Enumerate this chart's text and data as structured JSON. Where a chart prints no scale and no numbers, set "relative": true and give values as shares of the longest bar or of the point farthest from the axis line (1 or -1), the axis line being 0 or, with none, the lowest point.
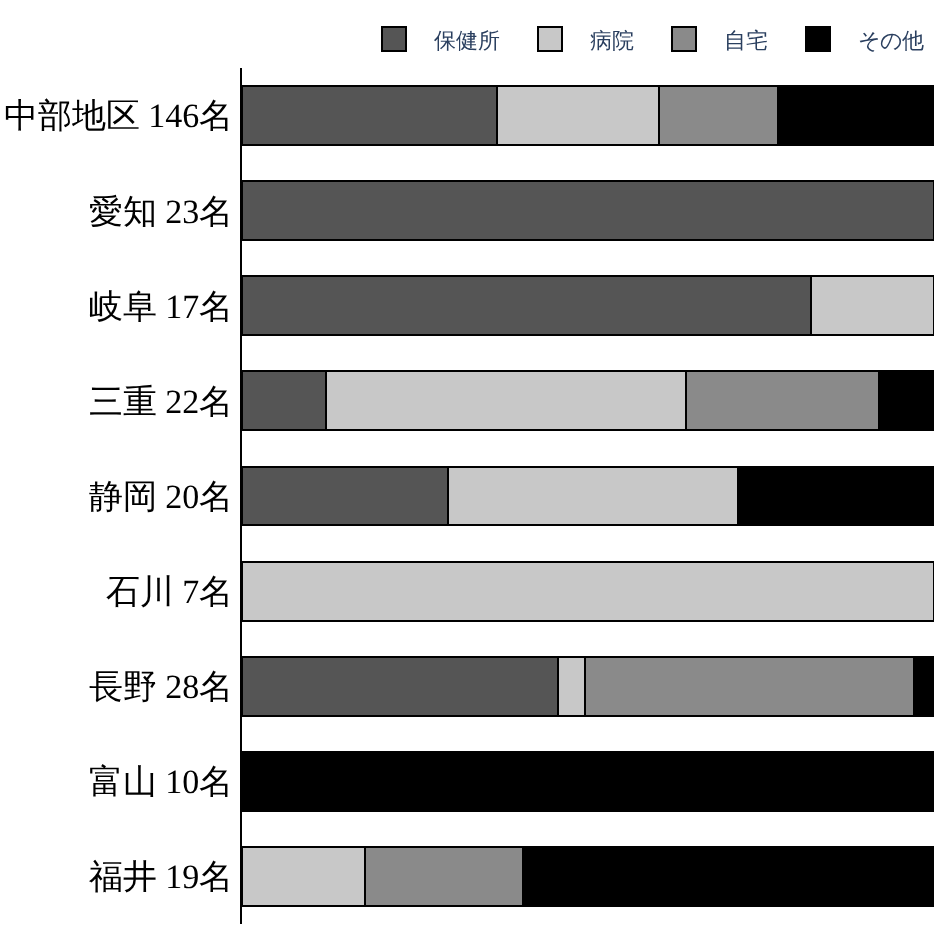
{
  "chart_data": {
    "type": "bar",
    "orientation": "horizontal",
    "stacked": true,
    "relative": true,
    "legend": "top",
    "categories": [
      "中部地区 146名",
      "愛知 23名",
      "岐阜 17名",
      "三重 22名",
      "静岡 20名",
      "石川 7名",
      "長野 28名",
      "富山 10名",
      "福井 19名"
    ],
    "series": [
      {
        "name": "保健所",
        "color": "#555555",
        "values": [
          0.368,
          1.0,
          0.822,
          0.121,
          0.298,
          null,
          0.457,
          null,
          null
        ]
      },
      {
        "name": "病院",
        "color": "#c8c8c8",
        "values": [
          0.235,
          null,
          0.178,
          0.52,
          0.419,
          1.0,
          0.038,
          null,
          0.178
        ]
      },
      {
        "name": "自宅",
        "color": "#8a8a8a",
        "values": [
          0.171,
          null,
          null,
          0.279,
          null,
          null,
          0.476,
          null,
          0.228
        ]
      },
      {
        "name": "その他",
        "color": "#000000",
        "values": [
          0.226,
          null,
          null,
          0.08,
          0.283,
          null,
          0.029,
          1.0,
          0.594
        ]
      }
    ]
  }
}
